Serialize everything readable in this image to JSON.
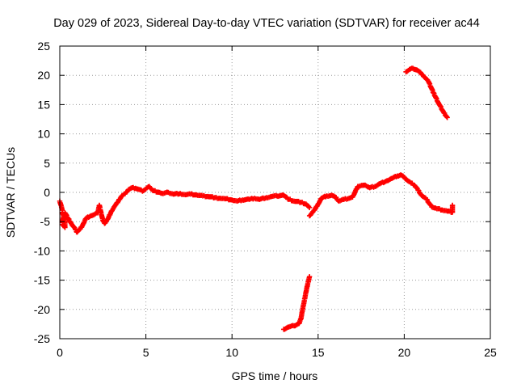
{
  "chart_data": {
    "type": "scatter",
    "title": "Day 029 of 2023, Sidereal Day-to-day VTEC variation (SDTVAR) for receiver ac44",
    "xlabel": "GPS time / hours",
    "ylabel": "SDTVAR / TECUs",
    "xlim": [
      0,
      25
    ],
    "ylim": [
      -25,
      25
    ],
    "xticks": [
      0,
      5,
      10,
      15,
      20,
      25
    ],
    "yticks": [
      -25,
      -20,
      -15,
      -10,
      -5,
      0,
      5,
      10,
      15,
      20,
      25
    ],
    "grid": true,
    "marker": "plus",
    "colors": {
      "series": "#ff0000",
      "grid": "#9a9a9a",
      "frame": "#000000"
    },
    "series": [
      {
        "name": "segment-main-a",
        "points": [
          [
            0.0,
            -1.5
          ],
          [
            0.1,
            -2.5
          ],
          [
            0.2,
            -4.0
          ],
          [
            0.15,
            -5.5
          ],
          [
            0.3,
            -6.0
          ],
          [
            0.3,
            -3.5
          ],
          [
            0.5,
            -4.5
          ],
          [
            0.7,
            -5.5
          ],
          [
            0.9,
            -6.3
          ],
          [
            1.0,
            -6.8
          ],
          [
            1.2,
            -6.2
          ],
          [
            1.4,
            -5.2
          ],
          [
            1.5,
            -4.5
          ],
          [
            1.8,
            -4.0
          ],
          [
            2.0,
            -3.8
          ],
          [
            2.2,
            -3.5
          ],
          [
            2.3,
            -2.2
          ],
          [
            2.4,
            -3.5
          ],
          [
            2.5,
            -4.8
          ],
          [
            2.6,
            -5.3
          ],
          [
            2.8,
            -4.5
          ],
          [
            3.0,
            -3.2
          ],
          [
            3.2,
            -2.3
          ],
          [
            3.4,
            -1.5
          ],
          [
            3.6,
            -0.6
          ],
          [
            3.8,
            -0.2
          ],
          [
            4.0,
            0.5
          ],
          [
            4.2,
            0.8
          ],
          [
            4.4,
            0.7
          ],
          [
            4.6,
            0.5
          ],
          [
            4.8,
            0.2
          ],
          [
            5.0,
            0.6
          ],
          [
            5.2,
            1.0
          ],
          [
            5.4,
            0.3
          ],
          [
            5.8,
            0.0
          ],
          [
            6.0,
            -0.2
          ],
          [
            6.3,
            0.0
          ],
          [
            6.6,
            -0.3
          ],
          [
            7.0,
            -0.2
          ],
          [
            7.3,
            -0.4
          ],
          [
            7.6,
            -0.3
          ],
          [
            8.0,
            -0.5
          ],
          [
            8.3,
            -0.6
          ],
          [
            8.6,
            -0.7
          ],
          [
            9.0,
            -0.9
          ],
          [
            9.3,
            -1.0
          ],
          [
            9.6,
            -1.1
          ],
          [
            10.0,
            -1.3
          ],
          [
            10.3,
            -1.5
          ],
          [
            10.6,
            -1.3
          ],
          [
            11.0,
            -1.2
          ],
          [
            11.3,
            -1.0
          ],
          [
            11.6,
            -1.2
          ],
          [
            12.0,
            -0.9
          ],
          [
            12.3,
            -0.7
          ],
          [
            12.6,
            -0.6
          ],
          [
            13.0,
            -0.5
          ],
          [
            13.3,
            -1.2
          ],
          [
            13.6,
            -1.5
          ],
          [
            14.0,
            -1.7
          ],
          [
            14.3,
            -2.0
          ],
          [
            14.5,
            -2.6
          ]
        ]
      },
      {
        "name": "segment-main-b",
        "points": [
          [
            14.5,
            -4.0
          ],
          [
            14.8,
            -3.0
          ],
          [
            15.0,
            -2.0
          ],
          [
            15.2,
            -1.0
          ],
          [
            15.5,
            -0.6
          ],
          [
            15.8,
            -0.5
          ],
          [
            16.0,
            -0.8
          ],
          [
            16.2,
            -1.5
          ],
          [
            16.5,
            -1.2
          ],
          [
            16.8,
            -1.0
          ],
          [
            17.0,
            -0.8
          ],
          [
            17.3,
            1.0
          ],
          [
            17.6,
            1.2
          ],
          [
            17.8,
            1.1
          ],
          [
            18.0,
            0.8
          ],
          [
            18.3,
            1.0
          ],
          [
            18.6,
            1.5
          ],
          [
            19.0,
            2.0
          ],
          [
            19.3,
            2.4
          ],
          [
            19.6,
            2.8
          ],
          [
            19.8,
            3.0
          ],
          [
            20.0,
            2.6
          ],
          [
            20.2,
            2.0
          ],
          [
            20.4,
            1.6
          ],
          [
            20.6,
            1.2
          ],
          [
            20.8,
            0.4
          ],
          [
            21.0,
            -0.5
          ],
          [
            21.3,
            -1.2
          ],
          [
            21.6,
            -2.5
          ],
          [
            21.9,
            -2.8
          ],
          [
            22.2,
            -3.0
          ],
          [
            22.5,
            -3.2
          ],
          [
            22.8,
            -3.4
          ],
          [
            22.8,
            -2.2
          ]
        ]
      },
      {
        "name": "segment-lower",
        "points": [
          [
            13.0,
            -23.4
          ],
          [
            13.3,
            -23.0
          ],
          [
            13.6,
            -22.8
          ],
          [
            13.9,
            -22.4
          ],
          [
            14.0,
            -21.6
          ],
          [
            14.1,
            -20.0
          ],
          [
            14.2,
            -18.5
          ],
          [
            14.3,
            -17.0
          ],
          [
            14.4,
            -15.6
          ],
          [
            14.5,
            -14.4
          ]
        ]
      },
      {
        "name": "segment-upper",
        "points": [
          [
            20.1,
            20.6
          ],
          [
            20.3,
            21.0
          ],
          [
            20.5,
            21.2
          ],
          [
            20.8,
            20.8
          ],
          [
            21.1,
            20.0
          ],
          [
            21.4,
            19.0
          ],
          [
            21.7,
            17.0
          ],
          [
            22.0,
            15.2
          ],
          [
            22.3,
            13.6
          ],
          [
            22.5,
            12.8
          ]
        ]
      }
    ]
  }
}
